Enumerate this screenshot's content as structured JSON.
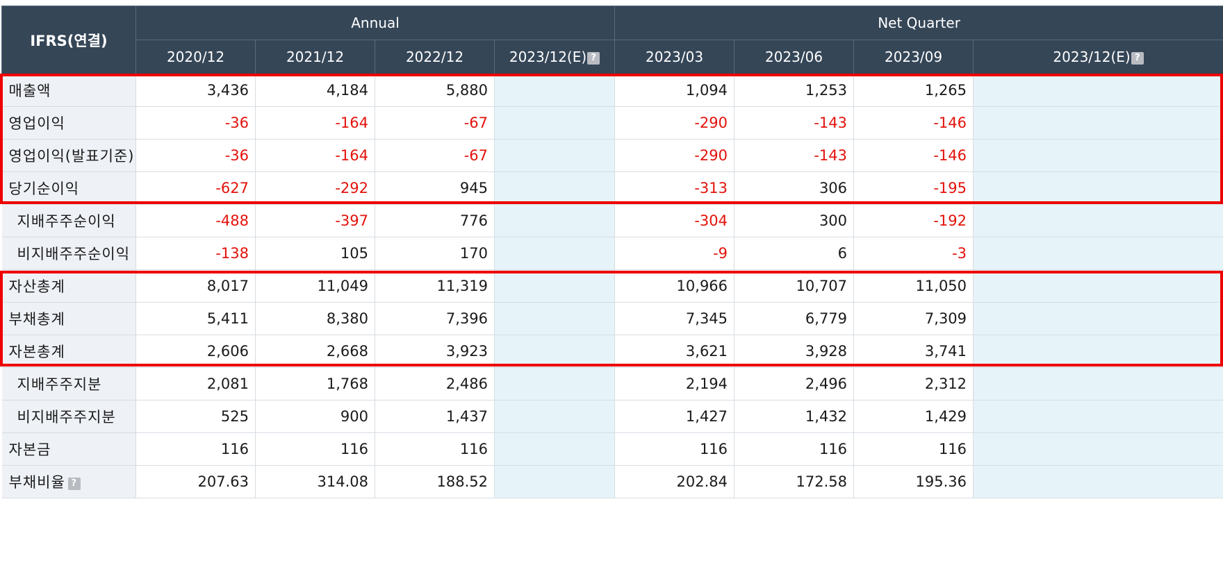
{
  "header": {
    "corner_label": "IFRS(연결)",
    "annual_group": "Annual",
    "quarter_group": "Net Quarter",
    "annual_periods": [
      "2020/12",
      "2021/12",
      "2022/12",
      "2023/12(E)"
    ],
    "quarter_periods": [
      "2023/03",
      "2023/06",
      "2023/09",
      "2023/12(E)"
    ],
    "help_icon_glyph": "?"
  },
  "rows": [
    {
      "label": "매출액",
      "values": [
        "3,436",
        "4,184",
        "5,880",
        "",
        "1,094",
        "1,253",
        "1,265",
        ""
      ]
    },
    {
      "label": "영업이익",
      "values": [
        "-36",
        "-164",
        "-67",
        "",
        "-290",
        "-143",
        "-146",
        ""
      ]
    },
    {
      "label": "영업이익(발표기준)",
      "values": [
        "-36",
        "-164",
        "-67",
        "",
        "-290",
        "-143",
        "-146",
        ""
      ]
    },
    {
      "label": "당기순이익",
      "values": [
        "-627",
        "-292",
        "945",
        "",
        "-313",
        "306",
        "-195",
        ""
      ]
    },
    {
      "label": "지배주주순이익",
      "values": [
        "-488",
        "-397",
        "776",
        "",
        "-304",
        "300",
        "-192",
        ""
      ]
    },
    {
      "label": "비지배주주순이익",
      "values": [
        "-138",
        "105",
        "170",
        "",
        "-9",
        "6",
        "-3",
        ""
      ]
    },
    {
      "label": "자산총계",
      "values": [
        "8,017",
        "11,049",
        "11,319",
        "",
        "10,966",
        "10,707",
        "11,050",
        ""
      ]
    },
    {
      "label": "부채총계",
      "values": [
        "5,411",
        "8,380",
        "7,396",
        "",
        "7,345",
        "6,779",
        "7,309",
        ""
      ]
    },
    {
      "label": "자본총계",
      "values": [
        "2,606",
        "2,668",
        "3,923",
        "",
        "3,621",
        "3,928",
        "3,741",
        ""
      ]
    },
    {
      "label": "지배주주지분",
      "values": [
        "2,081",
        "1,768",
        "2,486",
        "",
        "2,194",
        "2,496",
        "2,312",
        ""
      ]
    },
    {
      "label": "비지배주주지분",
      "values": [
        "525",
        "900",
        "1,437",
        "",
        "1,427",
        "1,432",
        "1,429",
        ""
      ]
    },
    {
      "label": "자본금",
      "values": [
        "116",
        "116",
        "116",
        "",
        "116",
        "116",
        "116",
        ""
      ]
    },
    {
      "label": "부채비율",
      "values": [
        "207.63",
        "314.08",
        "188.52",
        "",
        "202.84",
        "172.58",
        "195.36",
        ""
      ]
    }
  ],
  "colors": {
    "header_bg": "#354657",
    "label_bg": "#eef1f6",
    "estimate_bg": "#e6f4fa",
    "negative": "#e3120b",
    "highlight_box": "#ee0000"
  },
  "icons": {
    "help": "question-mark-help-icon"
  }
}
